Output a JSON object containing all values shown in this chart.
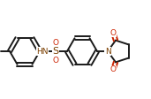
{
  "bg_color": "#ffffff",
  "bond_color": "#1a1a1a",
  "atom_colors": {
    "O": "#cc2200",
    "N": "#7B3F00",
    "S": "#7B3F00",
    "H": "#7B3F00"
  },
  "line_width": 1.4,
  "font_size": 6.5,
  "figsize": [
    1.71,
    1.12
  ],
  "dpi": 100,
  "xlim": [
    0,
    171
  ],
  "ylim": [
    0,
    112
  ],
  "ring_r": 17,
  "pent_r": 13
}
